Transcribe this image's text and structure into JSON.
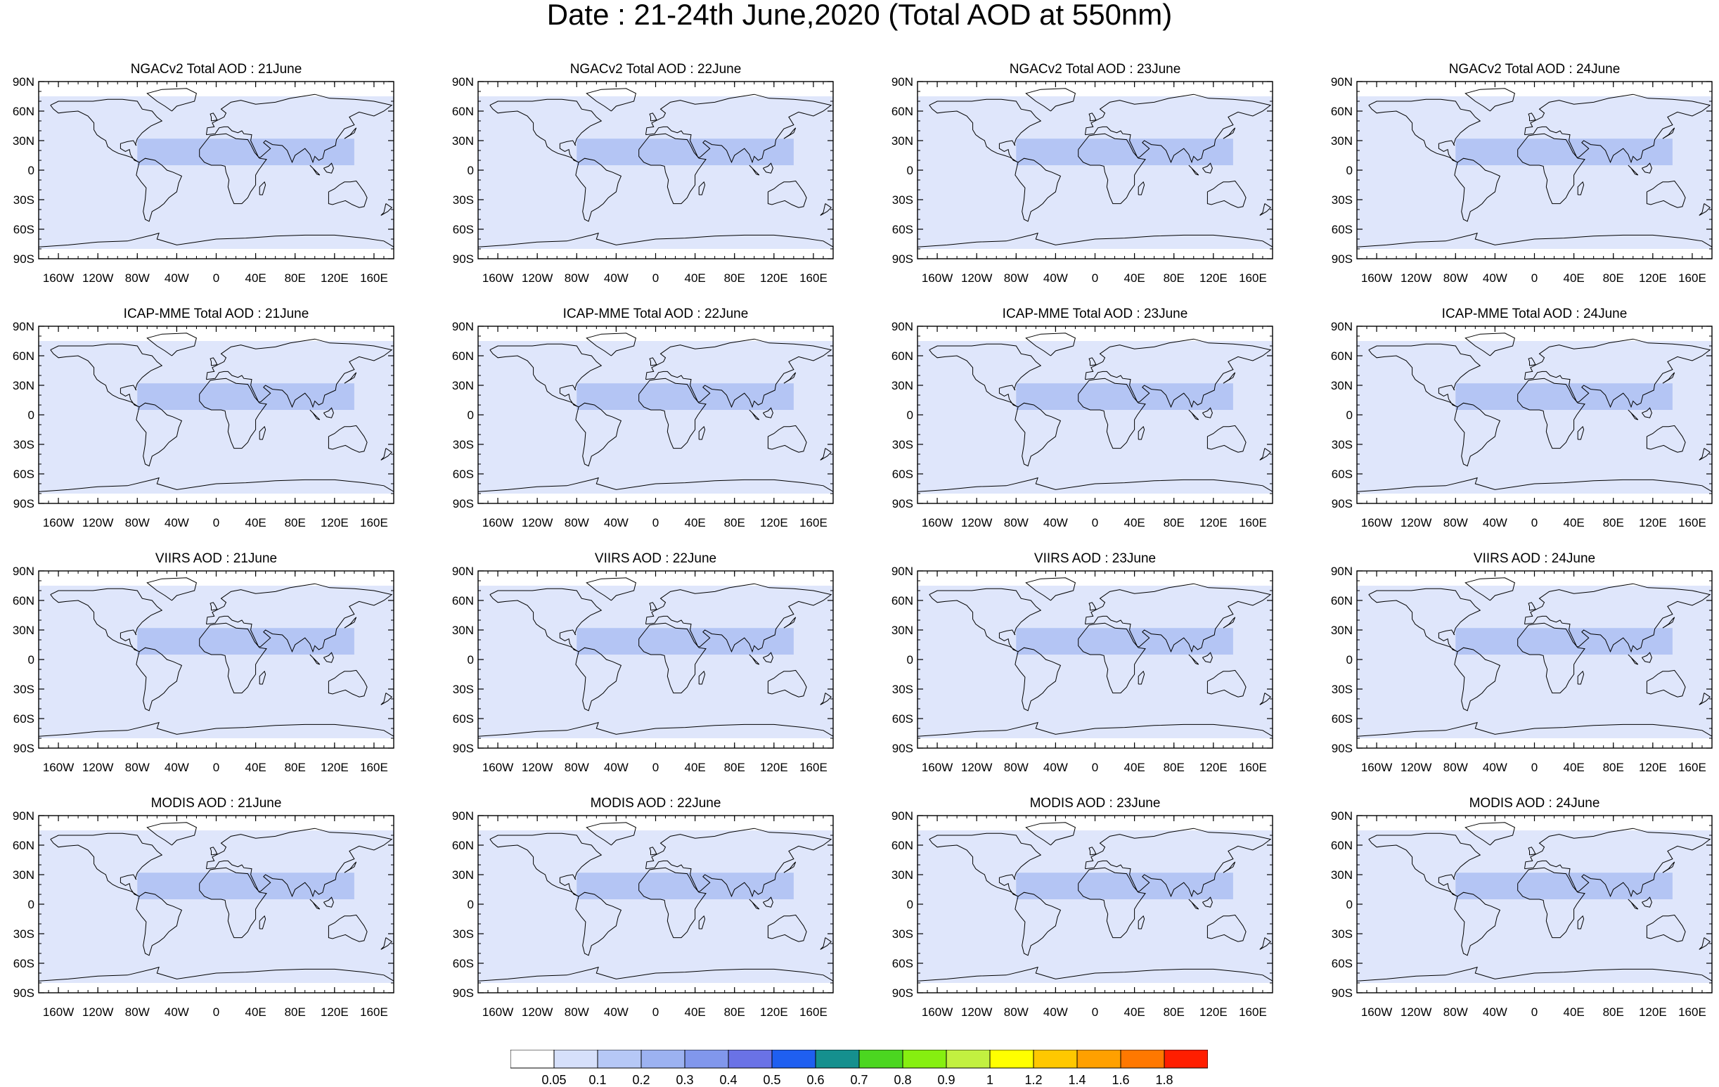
{
  "title": "Date : 21-24th June,2020 (Total AOD at 550nm)",
  "lat_ticks": [
    "90N",
    "60N",
    "30N",
    "0",
    "30S",
    "60S",
    "90S"
  ],
  "lon_ticks": [
    "160W",
    "120W",
    "80W",
    "40W",
    "0",
    "40E",
    "80E",
    "120E",
    "160E"
  ],
  "panels": [
    [
      {
        "title": "NGACv2 Total AOD : 21June"
      },
      {
        "title": "NGACv2 Total AOD : 22June"
      },
      {
        "title": "NGACv2 Total AOD : 23June"
      },
      {
        "title": "NGACv2 Total AOD : 24June"
      }
    ],
    [
      {
        "title": "ICAP-MME Total AOD : 21June"
      },
      {
        "title": "ICAP-MME Total AOD : 22June"
      },
      {
        "title": "ICAP-MME Total AOD : 23June"
      },
      {
        "title": "ICAP-MME Total AOD : 24June"
      }
    ],
    [
      {
        "title": "VIIRS AOD : 21June"
      },
      {
        "title": "VIIRS AOD : 22June"
      },
      {
        "title": "VIIRS AOD : 23June"
      },
      {
        "title": "VIIRS AOD : 24June"
      }
    ],
    [
      {
        "title": "MODIS AOD : 21June"
      },
      {
        "title": "MODIS AOD : 22June"
      },
      {
        "title": "MODIS AOD : 23June"
      },
      {
        "title": "MODIS AOD : 24June"
      }
    ]
  ],
  "colorbar": {
    "labels": [
      "0.05",
      "0.1",
      "0.2",
      "0.3",
      "0.4",
      "0.5",
      "0.6",
      "0.7",
      "0.8",
      "0.9",
      "1",
      "1.2",
      "1.4",
      "1.6",
      "1.8"
    ],
    "colors": [
      "#ffffff",
      "#d6e0fb",
      "#b6c8f6",
      "#9cb2f1",
      "#8197ec",
      "#6a72e6",
      "#1f5ff0",
      "#15908e",
      "#4bd620",
      "#86ef10",
      "#c2f040",
      "#ffff00",
      "#ffc800",
      "#ffa000",
      "#ff7800",
      "#ff1e00"
    ]
  }
}
